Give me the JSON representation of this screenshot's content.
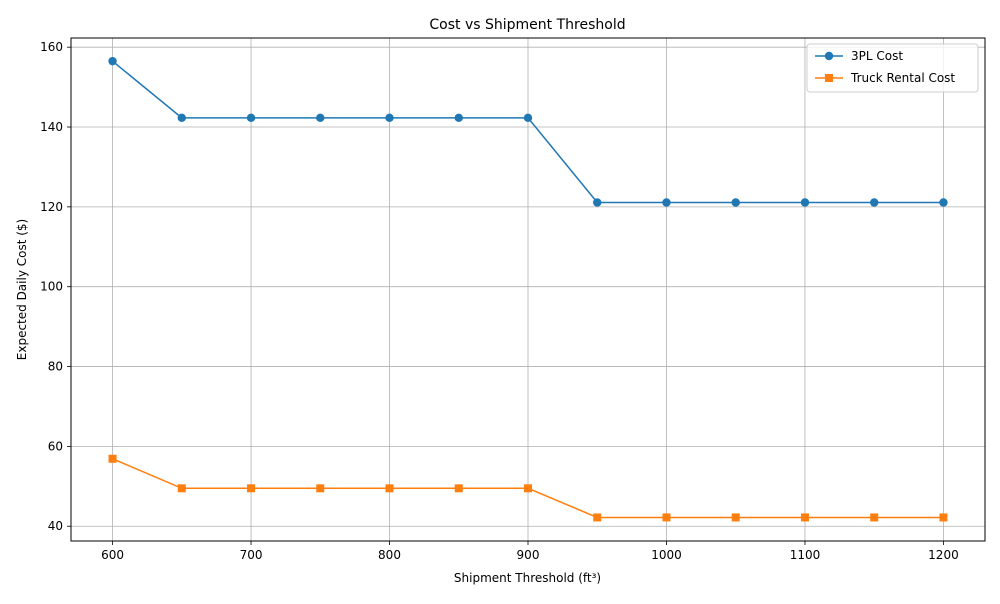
{
  "chart_data": {
    "type": "line",
    "title": "Cost vs Shipment Threshold",
    "xlabel": "Shipment Threshold (ft³)",
    "ylabel": "Expected Daily Cost ($)",
    "x": [
      600,
      650,
      700,
      750,
      800,
      850,
      900,
      950,
      1000,
      1050,
      1100,
      1150,
      1200
    ],
    "xlim": [
      570,
      1230
    ],
    "ylim": [
      36.3,
      162.3
    ],
    "xticks": [
      600,
      700,
      800,
      900,
      1000,
      1100,
      1200
    ],
    "yticks": [
      40,
      60,
      80,
      100,
      120,
      140,
      160
    ],
    "grid": true,
    "legend_position": "top-right",
    "series": [
      {
        "name": "3PL Cost",
        "color": "#1f77b4",
        "marker": "circle",
        "values": [
          156.5,
          142.3,
          142.3,
          142.3,
          142.3,
          142.3,
          142.3,
          121.1,
          121.1,
          121.1,
          121.1,
          121.1,
          121.1
        ]
      },
      {
        "name": "Truck Rental Cost",
        "color": "#ff7f0e",
        "marker": "square",
        "values": [
          56.9,
          49.5,
          49.5,
          49.5,
          49.5,
          49.5,
          49.5,
          42.2,
          42.2,
          42.2,
          42.2,
          42.2,
          42.2
        ]
      }
    ]
  }
}
